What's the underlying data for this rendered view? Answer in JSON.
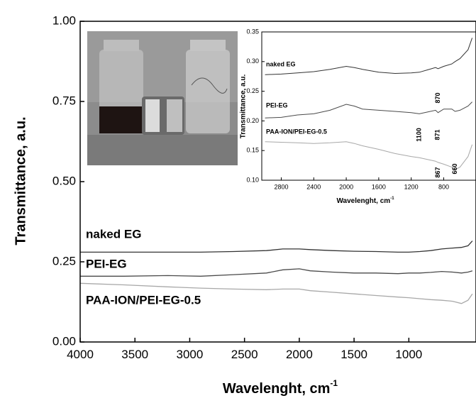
{
  "chart_data": [
    {
      "type": "line",
      "xlabel": "Wavelenght, cm",
      "xlabel_superscript": "-1",
      "ylabel": "Transmittance, a.u.",
      "xlim": [
        4000,
        400
      ],
      "ylim": [
        0,
        1
      ],
      "xticks": [
        4000,
        3500,
        3000,
        2500,
        2000,
        1500,
        1000
      ],
      "yticks": [
        {
          "value": 0,
          "label": "0.00"
        },
        {
          "value": 0.25,
          "label": "0.25"
        },
        {
          "value": 0.5,
          "label": "0.50"
        },
        {
          "value": 0.75,
          "label": "0.75"
        },
        {
          "value": 1,
          "label": "1.00"
        }
      ],
      "x": [
        4000,
        3600,
        3200,
        2900,
        2600,
        2300,
        2150,
        2000,
        1900,
        1700,
        1500,
        1300,
        1100,
        1000,
        900,
        800,
        700,
        600,
        520,
        460,
        420
      ],
      "series": [
        {
          "name": "naked EG",
          "color": "#333333",
          "values": [
            0.28,
            0.28,
            0.28,
            0.28,
            0.282,
            0.285,
            0.29,
            0.29,
            0.288,
            0.285,
            0.283,
            0.282,
            0.28,
            0.28,
            0.282,
            0.285,
            0.29,
            0.293,
            0.295,
            0.3,
            0.315
          ]
        },
        {
          "name": "PEI-EG",
          "color": "#4a4a4a",
          "values": [
            0.205,
            0.205,
            0.207,
            0.205,
            0.21,
            0.215,
            0.225,
            0.228,
            0.222,
            0.218,
            0.215,
            0.215,
            0.213,
            0.215,
            0.215,
            0.217,
            0.22,
            0.218,
            0.215,
            0.218,
            0.222
          ]
        },
        {
          "name": "PAA-ION/PEI-EG-0.5",
          "color": "#a8a8a8",
          "values": [
            0.183,
            0.178,
            0.172,
            0.168,
            0.165,
            0.163,
            0.165,
            0.165,
            0.16,
            0.155,
            0.15,
            0.145,
            0.14,
            0.138,
            0.135,
            0.132,
            0.13,
            0.127,
            0.12,
            0.13,
            0.15
          ]
        }
      ]
    },
    {
      "type": "line",
      "xlabel": "Wavelenght, cm",
      "xlabel_superscript": "-1",
      "ylabel": "Transmittance, a.u.",
      "xlim": [
        3040,
        420
      ],
      "ylim": [
        0.1,
        0.35
      ],
      "xticks": [
        2800,
        2400,
        2000,
        1600,
        1200,
        800
      ],
      "yticks": [
        {
          "value": 0.1,
          "label": "0.10"
        },
        0.15,
        {
          "value": 0.2,
          "label": "0.20"
        },
        0.25,
        {
          "value": 0.3,
          "label": "0.30"
        },
        0.35
      ],
      "x": [
        3000,
        2800,
        2600,
        2400,
        2200,
        2000,
        1900,
        1800,
        1600,
        1400,
        1200,
        1100,
        1000,
        900,
        870,
        800,
        700,
        660,
        600,
        500,
        450
      ],
      "series": [
        {
          "name": "naked EG",
          "color": "#333333",
          "values": [
            0.278,
            0.279,
            0.281,
            0.283,
            0.287,
            0.292,
            0.29,
            0.287,
            0.282,
            0.28,
            0.281,
            0.282,
            0.286,
            0.29,
            0.288,
            0.292,
            0.296,
            0.3,
            0.305,
            0.32,
            0.34
          ]
        },
        {
          "name": "PEI-EG",
          "color": "#4a4a4a",
          "values": [
            0.205,
            0.206,
            0.21,
            0.212,
            0.218,
            0.228,
            0.225,
            0.22,
            0.218,
            0.216,
            0.214,
            0.212,
            0.215,
            0.218,
            0.214,
            0.22,
            0.22,
            0.216,
            0.218,
            0.225,
            0.232
          ]
        },
        {
          "name": "PAA-ION/PEI-EG-0.5",
          "color": "#a8a8a8",
          "values": [
            0.165,
            0.164,
            0.163,
            0.162,
            0.163,
            0.165,
            0.162,
            0.158,
            0.152,
            0.145,
            0.14,
            0.138,
            0.135,
            0.132,
            0.13,
            0.127,
            0.122,
            0.118,
            0.122,
            0.14,
            0.16
          ]
        }
      ],
      "peak_labels": [
        870,
        1100,
        871,
        867,
        660
      ]
    }
  ]
}
